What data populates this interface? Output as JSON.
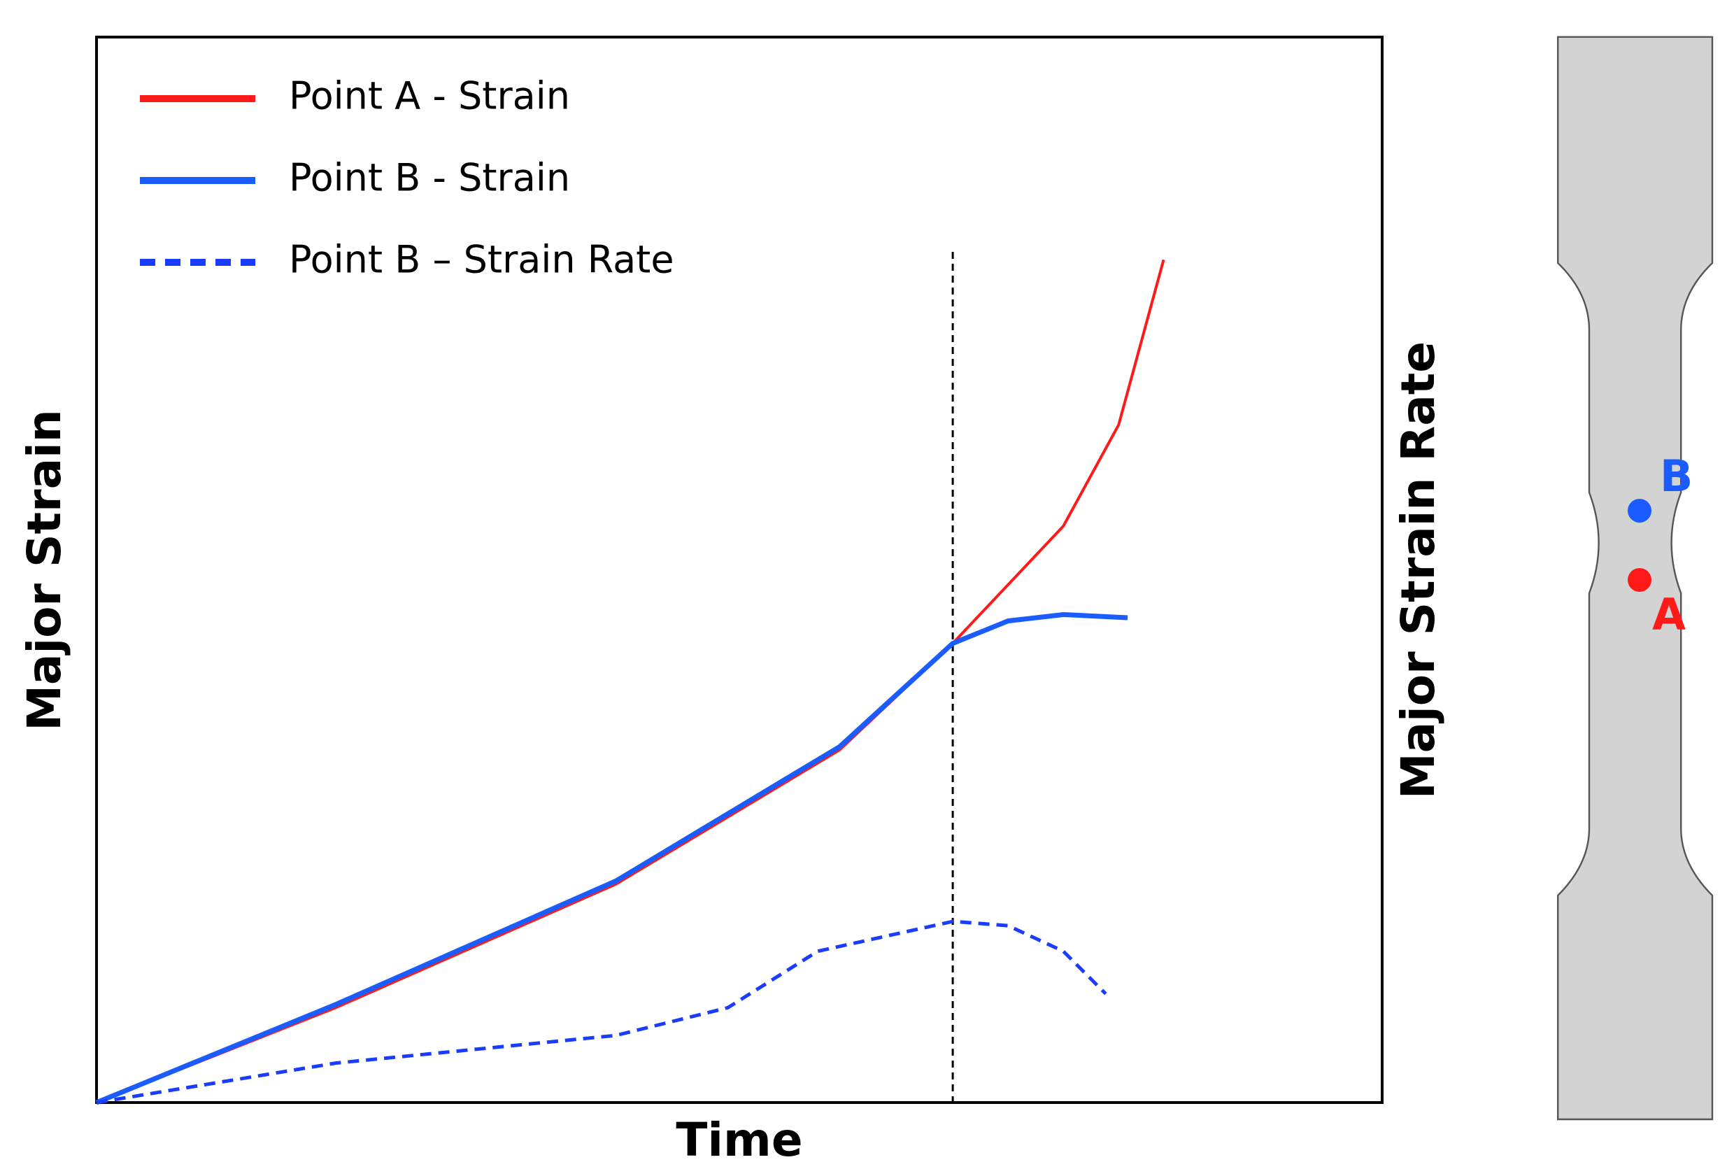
{
  "chart_data": {
    "type": "line",
    "xlabel": "Time",
    "ylabel": "Major Strain",
    "y2label": "Major Strain Rate",
    "xlim": [
      0,
      100
    ],
    "ylim": [
      0,
      100
    ],
    "y2lim": [
      0,
      100
    ],
    "vline": 66.6,
    "series": [
      {
        "name": "Point A - Strain",
        "color": "#ff1a1a",
        "linestyle": "solid",
        "x": [
          0,
          18.6,
          40.4,
          57.8,
          66.6,
          75.2,
          79.5,
          83.0
        ],
        "values": [
          0,
          8.9,
          20.5,
          33.1,
          43.1,
          54.1,
          63.6,
          79.1
        ]
      },
      {
        "name": "Point B - Strain",
        "color": "#1a5cff",
        "linestyle": "solid",
        "x": [
          0,
          18.6,
          40.4,
          57.8,
          66.6,
          70.9,
          75.2,
          80.2
        ],
        "values": [
          0,
          9.2,
          20.8,
          33.4,
          43.1,
          45.2,
          45.8,
          45.5
        ]
      },
      {
        "name": "Point B – Strain Rate",
        "color": "#1a3cff",
        "linestyle": "dashed",
        "axis": "y2",
        "x": [
          0,
          18.6,
          40.4,
          49.1,
          56.1,
          66.6,
          70.9,
          75.2,
          78.5
        ],
        "values": [
          0,
          3.7,
          6.3,
          8.9,
          14.2,
          17.0,
          16.6,
          14.2,
          10.2
        ]
      }
    ]
  },
  "diagram": {
    "points": [
      {
        "label": "B",
        "color": "#1a5cff"
      },
      {
        "label": "A",
        "color": "#ff1a1a"
      }
    ]
  }
}
